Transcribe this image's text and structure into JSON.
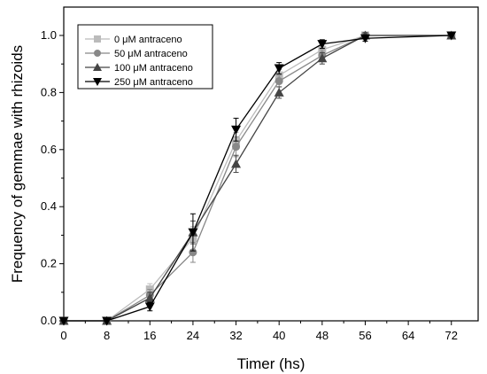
{
  "chart_data": {
    "type": "line",
    "title": "",
    "xlabel": "Timer (hs)",
    "ylabel": "Frequency of gemmae with rhizoids",
    "xlim": [
      0,
      74
    ],
    "ylim": [
      0,
      1.1
    ],
    "x_ticks": [
      0,
      8,
      16,
      24,
      32,
      40,
      48,
      56,
      64,
      72
    ],
    "y_ticks": [
      0.0,
      0.2,
      0.4,
      0.6,
      0.8,
      1.0
    ],
    "y_tick_labels": [
      "0.0",
      "0.2",
      "0.4",
      "0.6",
      "0.8",
      "1.0"
    ],
    "grid": false,
    "legend_position": "top-left",
    "series": [
      {
        "name": "0 μM antraceno",
        "color": "#bbbbbb",
        "marker": "square",
        "x": [
          0,
          8,
          16,
          24,
          32,
          40,
          48,
          56,
          72
        ],
        "y": [
          0.0,
          0.0,
          0.11,
          0.29,
          0.63,
          0.86,
          0.95,
          1.0,
          1.0
        ],
        "err": [
          0,
          0,
          0.02,
          0.04,
          0.03,
          0.02,
          0.02,
          0.01,
          0
        ]
      },
      {
        "name": "50 μM antraceno",
        "color": "#888888",
        "marker": "circle",
        "x": [
          0,
          8,
          16,
          24,
          32,
          40,
          48,
          56,
          72
        ],
        "y": [
          0.0,
          0.0,
          0.09,
          0.24,
          0.61,
          0.84,
          0.93,
          1.0,
          1.0
        ],
        "err": [
          0,
          0,
          0.02,
          0.035,
          0.035,
          0.02,
          0.02,
          0.01,
          0
        ]
      },
      {
        "name": "100 μM antraceno",
        "color": "#444444",
        "marker": "triangle-up",
        "x": [
          0,
          8,
          16,
          24,
          32,
          40,
          48,
          56,
          72
        ],
        "y": [
          0.0,
          0.0,
          0.08,
          0.31,
          0.55,
          0.8,
          0.92,
          1.0,
          1.0
        ],
        "err": [
          0,
          0,
          0.02,
          0.04,
          0.03,
          0.02,
          0.02,
          0.01,
          0
        ]
      },
      {
        "name": "250 μM antraceno",
        "color": "#000000",
        "marker": "triangle-down",
        "x": [
          0,
          8,
          16,
          24,
          32,
          40,
          48,
          56,
          72
        ],
        "y": [
          0.0,
          0.0,
          0.05,
          0.31,
          0.67,
          0.885,
          0.97,
          0.99,
          1.0
        ],
        "err": [
          0,
          0,
          0.015,
          0.065,
          0.04,
          0.02,
          0.015,
          0.01,
          0
        ]
      }
    ]
  }
}
